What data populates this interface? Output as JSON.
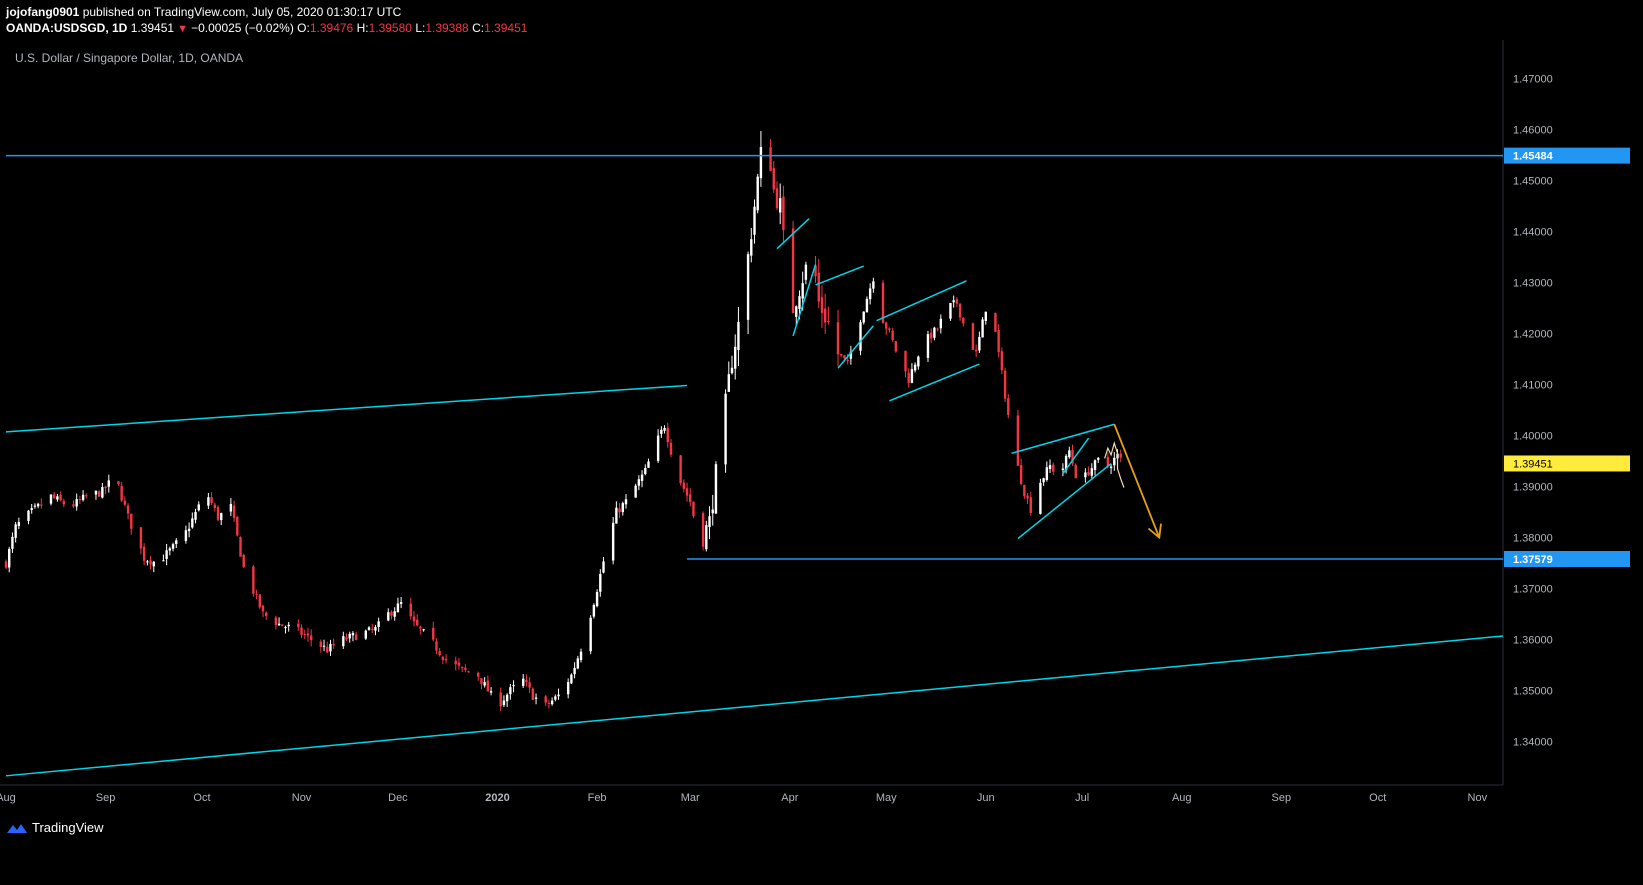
{
  "header": {
    "author": "jojofang0901",
    "published_text": "published on TradingView.com, July 05, 2020 01:30:17 UTC",
    "symbol": "OANDA:USDSGD, 1D",
    "last_price": "1.39451",
    "change_text": "−0.00025 (−0.02%)",
    "open_label": "O:",
    "open_value": "1.39476",
    "high_label": "H:",
    "high_value": "1.39580",
    "low_label": "L:",
    "low_value": "1.39388",
    "close_label": "C:",
    "close_value": "1.39451"
  },
  "legend": {
    "title": "U.S. Dollar / Singapore Dollar, 1D, OANDA"
  },
  "footer": {
    "brand": "TradingView",
    "logo_icon": "tradingview-logo-icon"
  },
  "colors": {
    "background": "#000000",
    "candle_up": "#ffffff",
    "candle_down": "#f23645",
    "trendline": "#00d5e8",
    "horizontal_level": "#2196f3",
    "projection_arrow": "#e6a012",
    "last_price_badge": "#ffeb3b"
  },
  "chart_data": {
    "type": "candlestick",
    "title": "U.S. Dollar / Singapore Dollar, 1D, OANDA",
    "ylim": [
      1.3315,
      1.4775
    ],
    "y_ticks": [
      "1.34000",
      "1.35000",
      "1.36000",
      "1.37000",
      "1.38000",
      "1.39000",
      "1.40000",
      "1.41000",
      "1.42000",
      "1.43000",
      "1.44000",
      "1.45000",
      "1.46000",
      "1.47000"
    ],
    "x_ticks": [
      {
        "label": "Aug",
        "day": 0
      },
      {
        "label": "Sep",
        "day": 31
      },
      {
        "label": "Oct",
        "day": 61
      },
      {
        "label": "Nov",
        "day": 92
      },
      {
        "label": "Dec",
        "day": 122
      },
      {
        "label": "2020",
        "day": 153
      },
      {
        "label": "Feb",
        "day": 184
      },
      {
        "label": "Mar",
        "day": 213
      },
      {
        "label": "Apr",
        "day": 244
      },
      {
        "label": "May",
        "day": 274
      },
      {
        "label": "Jun",
        "day": 305
      },
      {
        "label": "Jul",
        "day": 335
      },
      {
        "label": "Aug",
        "day": 366
      },
      {
        "label": "Sep",
        "day": 397
      },
      {
        "label": "Oct",
        "day": 427
      },
      {
        "label": "Nov",
        "day": 458
      }
    ],
    "x_day_range": [
      0,
      466
    ],
    "price_path": [
      [
        0,
        1.375
      ],
      [
        3,
        1.382
      ],
      [
        6,
        1.384
      ],
      [
        10,
        1.386
      ],
      [
        14,
        1.388
      ],
      [
        20,
        1.386
      ],
      [
        25,
        1.388
      ],
      [
        30,
        1.389
      ],
      [
        34,
        1.392
      ],
      [
        38,
        1.384
      ],
      [
        43,
        1.376
      ],
      [
        47,
        1.375
      ],
      [
        52,
        1.378
      ],
      [
        56,
        1.381
      ],
      [
        60,
        1.386
      ],
      [
        63,
        1.388
      ],
      [
        66,
        1.384
      ],
      [
        70,
        1.386
      ],
      [
        74,
        1.374
      ],
      [
        80,
        1.365
      ],
      [
        85,
        1.363
      ],
      [
        90,
        1.362
      ],
      [
        95,
        1.36
      ],
      [
        100,
        1.358
      ],
      [
        105,
        1.36
      ],
      [
        110,
        1.361
      ],
      [
        115,
        1.362
      ],
      [
        119,
        1.365
      ],
      [
        123,
        1.367
      ],
      [
        127,
        1.363
      ],
      [
        132,
        1.36
      ],
      [
        137,
        1.356
      ],
      [
        142,
        1.354
      ],
      [
        147,
        1.353
      ],
      [
        150,
        1.35
      ],
      [
        153,
        1.347
      ],
      [
        157,
        1.35
      ],
      [
        161,
        1.352
      ],
      [
        164,
        1.349
      ],
      [
        168,
        1.347
      ],
      [
        172,
        1.349
      ],
      [
        176,
        1.353
      ],
      [
        180,
        1.36
      ],
      [
        184,
        1.37
      ],
      [
        187,
        1.378
      ],
      [
        190,
        1.385
      ],
      [
        193,
        1.387
      ],
      [
        196,
        1.39
      ],
      [
        199,
        1.393
      ],
      [
        202,
        1.398
      ],
      [
        205,
        1.402
      ],
      [
        207,
        1.397
      ],
      [
        210,
        1.391
      ],
      [
        213,
        1.387
      ],
      [
        216,
        1.379
      ],
      [
        219,
        1.383
      ],
      [
        222,
        1.397
      ],
      [
        226,
        1.415
      ],
      [
        229,
        1.425
      ],
      [
        232,
        1.44
      ],
      [
        235,
        1.455
      ],
      [
        237,
        1.459
      ],
      [
        239,
        1.448
      ],
      [
        241,
        1.445
      ],
      [
        243,
        1.432
      ],
      [
        245,
        1.425
      ],
      [
        248,
        1.431
      ],
      [
        251,
        1.436
      ],
      [
        253,
        1.426
      ],
      [
        256,
        1.422
      ],
      [
        259,
        1.416
      ],
      [
        262,
        1.414
      ],
      [
        265,
        1.421
      ],
      [
        268,
        1.427
      ],
      [
        270,
        1.431
      ],
      [
        272,
        1.424
      ],
      [
        275,
        1.42
      ],
      [
        278,
        1.415
      ],
      [
        281,
        1.411
      ],
      [
        284,
        1.416
      ],
      [
        287,
        1.419
      ],
      [
        290,
        1.421
      ],
      [
        293,
        1.425
      ],
      [
        296,
        1.426
      ],
      [
        299,
        1.42
      ],
      [
        302,
        1.416
      ],
      [
        305,
        1.425
      ],
      [
        308,
        1.42
      ],
      [
        311,
        1.408
      ],
      [
        314,
        1.396
      ],
      [
        317,
        1.389
      ],
      [
        320,
        1.384
      ],
      [
        322,
        1.391
      ],
      [
        325,
        1.394
      ],
      [
        328,
        1.392
      ],
      [
        331,
        1.397
      ],
      [
        334,
        1.39
      ],
      [
        337,
        1.393
      ],
      [
        340,
        1.395
      ],
      [
        343,
        1.394
      ],
      [
        346,
        1.396
      ],
      [
        348,
        1.3945
      ]
    ],
    "horizontal_levels": [
      {
        "label": "1.45484",
        "value": 1.45484,
        "from_day": 0
      },
      {
        "label": "1.37579",
        "value": 1.37579,
        "from_day": 212
      }
    ],
    "last_price": {
      "label": "1.39451",
      "value": 1.39451
    },
    "trendlines": [
      {
        "from": [
          0,
          1.4007
        ],
        "to": [
          212,
          1.4098
        ]
      },
      {
        "from": [
          0,
          1.3333
        ],
        "to": [
          466,
          1.3607
        ]
      },
      {
        "from": [
          240,
          1.4366
        ],
        "to": [
          250,
          1.4425
        ]
      },
      {
        "from": [
          245,
          1.4195
        ],
        "to": [
          252,
          1.4335
        ]
      },
      {
        "from": [
          252,
          1.4295
        ],
        "to": [
          267,
          1.4332
        ]
      },
      {
        "from": [
          259,
          1.4132
        ],
        "to": [
          270,
          1.4215
        ]
      },
      {
        "from": [
          271,
          1.4225
        ],
        "to": [
          299,
          1.4303
        ]
      },
      {
        "from": [
          275,
          1.4068
        ],
        "to": [
          303,
          1.414
        ]
      },
      {
        "from": [
          313,
          1.3965
        ],
        "to": [
          345,
          1.4022
        ]
      },
      {
        "from": [
          315,
          1.3798
        ],
        "to": [
          344,
          1.3945
        ]
      },
      {
        "from": [
          329,
          1.3925
        ],
        "to": [
          337,
          1.3995
        ]
      }
    ],
    "projection_arrow": {
      "from": [
        345,
        1.4022
      ],
      "to": [
        359,
        1.38
      ]
    },
    "sketch_path": [
      [
        342,
        1.3955
      ],
      [
        343,
        1.3975
      ],
      [
        344,
        1.3962
      ],
      [
        345,
        1.3985
      ],
      [
        346,
        1.3965
      ],
      [
        346,
        1.3935
      ],
      [
        347,
        1.3915
      ],
      [
        348,
        1.3898
      ]
    ]
  }
}
